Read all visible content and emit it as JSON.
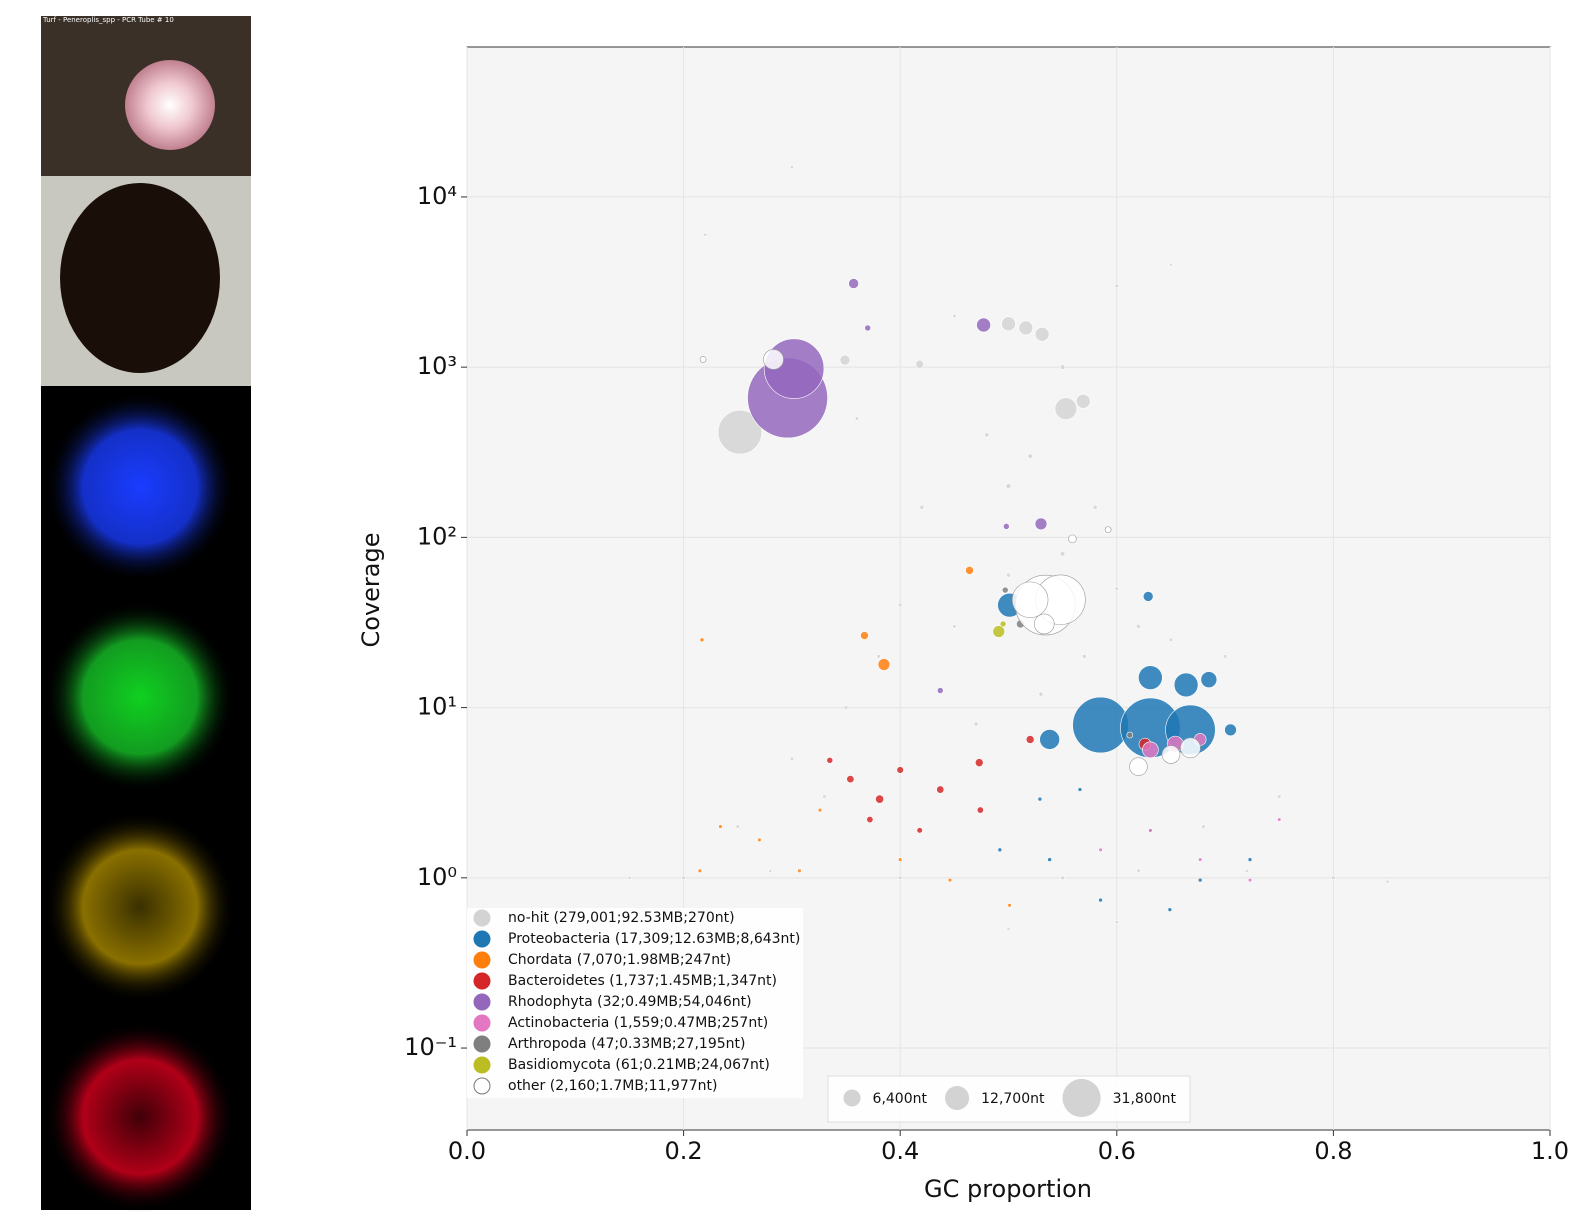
{
  "image_panel": {
    "caption": "Turf - Peneroplis_spp - PCR Tube # 10"
  },
  "chart_data": {
    "type": "scatter",
    "xlabel": "GC proportion",
    "ylabel": "Coverage",
    "xlim": [
      0,
      1
    ],
    "xticks": [
      {
        "value": 0,
        "label": "0.0"
      },
      0.2,
      0.4,
      0.6,
      0.8,
      {
        "value": 1,
        "label": "1.0"
      }
    ],
    "ylim": [
      0.033,
      76000
    ],
    "yscale": "log",
    "yticks": [
      {
        "value": 0.1,
        "label": "10⁻¹"
      },
      {
        "value": 1,
        "label": "10⁰"
      },
      {
        "value": 10,
        "label": "10¹"
      },
      {
        "value": 100,
        "label": "10²"
      },
      {
        "value": 1000,
        "label": "10³"
      },
      {
        "value": 10000,
        "label": "10⁴"
      }
    ],
    "grid": true,
    "legend": "lower left",
    "size_legend": [
      {
        "value": 6400,
        "label": "6,400nt"
      },
      {
        "value": 12700,
        "label": "12,700nt"
      },
      {
        "value": 31800,
        "label": "31,800nt"
      }
    ],
    "series": [
      {
        "name": "no-hit (279,001;92.53MB;270nt)",
        "color": "#d3d3d3",
        "x": [
          0.252,
          0.553,
          0.5,
          0.531,
          0.516,
          0.569,
          0.418,
          0.349,
          0.45,
          0.5,
          0.55,
          0.6,
          0.65,
          0.4,
          0.35,
          0.3,
          0.7,
          0.75,
          0.25,
          0.2,
          0.8,
          0.85,
          0.15,
          0.5,
          0.52,
          0.48,
          0.55,
          0.45,
          0.6,
          0.42,
          0.58,
          0.62,
          0.66,
          0.38,
          0.33,
          0.68,
          0.5,
          0.6,
          0.72,
          0.28,
          0.4,
          0.55,
          0.62,
          0.53,
          0.47,
          0.57,
          0.3,
          0.22,
          0.65,
          0.36
        ],
        "values": [
          415,
          570,
          1800,
          1560,
          1700,
          630,
          1040,
          1100,
          30,
          60,
          80,
          50,
          25,
          40,
          10,
          5,
          20,
          3,
          2,
          1.0,
          1.0,
          0.95,
          1.0,
          200,
          300,
          400,
          1000,
          2000,
          3000,
          150,
          150,
          30,
          12,
          20,
          3,
          2,
          0.5,
          0.55,
          1.1,
          1.1,
          1.0,
          1.0,
          1.1,
          12,
          8,
          20,
          15000,
          6000,
          4000,
          500
        ],
        "sizes": [
          42000,
          10500,
          4300,
          4300,
          4300,
          4300,
          1400,
          2200,
          300,
          400,
          500,
          300,
          300,
          300,
          300,
          300,
          300,
          300,
          300,
          300,
          300,
          200,
          200,
          600,
          500,
          400,
          500,
          300,
          300,
          400,
          400,
          400,
          300,
          300,
          300,
          300,
          200,
          200,
          200,
          200,
          300,
          300,
          300,
          400,
          400,
          400,
          200,
          200,
          200,
          300
        ]
      },
      {
        "name": "Proteobacteria (17,309;12.63MB;8,643nt)",
        "color": "#1f77b4",
        "x": [
          0.585,
          0.631,
          0.668,
          0.631,
          0.664,
          0.685,
          0.501,
          0.629,
          0.538,
          0.705,
          0.538,
          0.585,
          0.631,
          0.677,
          0.566,
          0.492,
          0.723,
          0.649,
          0.529
        ],
        "values": [
          7.9,
          7.6,
          7.4,
          15,
          13.6,
          14.6,
          40,
          45,
          6.5,
          7.4,
          1.28,
          0.74,
          1.9,
          0.97,
          3.3,
          1.46,
          1.28,
          0.65,
          2.9
        ],
        "sizes": [
          68000,
          78000,
          54000,
          12500,
          12500,
          5600,
          12500,
          2200,
          8700,
          3100,
          350,
          350,
          350,
          350,
          350,
          350,
          350,
          350,
          350
        ]
      },
      {
        "name": "Chordata (7,070;1.98MB;247nt)",
        "color": "#ff7f0e",
        "x": [
          0.464,
          0.385,
          0.367,
          0.217,
          0.215,
          0.27,
          0.307,
          0.4,
          0.446,
          0.501,
          0.326,
          0.234
        ],
        "values": [
          64,
          17.9,
          26.5,
          25,
          1.1,
          1.67,
          1.1,
          1.28,
          0.97,
          0.69,
          2.5,
          2.0
        ],
        "sizes": [
          1400,
          3100,
          1400,
          350,
          300,
          300,
          300,
          300,
          300,
          300,
          300,
          300
        ]
      },
      {
        "name": "Bacteroidetes (1,737;1.45MB;1,347nt)",
        "color": "#d62728",
        "x": [
          0.354,
          0.381,
          0.4,
          0.437,
          0.474,
          0.335,
          0.418,
          0.372,
          0.626,
          0.473,
          0.52
        ],
        "values": [
          3.8,
          2.9,
          4.3,
          3.3,
          2.5,
          4.9,
          1.9,
          2.2,
          6.1,
          4.75,
          6.5
        ],
        "sizes": [
          1200,
          1500,
          1000,
          1200,
          900,
          800,
          700,
          900,
          3100,
          1400,
          1400
        ]
      },
      {
        "name": "Rhodophyta (32;0.49MB;54,046nt)",
        "color": "#9467bd",
        "x": [
          0.296,
          0.302,
          0.357,
          0.477,
          0.37,
          0.53,
          0.437,
          0.498
        ],
        "values": [
          660,
          980,
          3100,
          1770,
          1700,
          120,
          12.6,
          116
        ],
        "sizes": [
          140000,
          78000,
          2200,
          4300,
          800,
          3100,
          800,
          800
        ]
      },
      {
        "name": "Actinobacteria (1,559;0.47MB;257nt)",
        "color": "#e377c2",
        "x": [
          0.631,
          0.654,
          0.677,
          0.631,
          0.677,
          0.723,
          0.585,
          0.75
        ],
        "values": [
          5.65,
          6.1,
          6.5,
          1.9,
          1.28,
          0.97,
          1.46,
          2.2
        ],
        "sizes": [
          5600,
          5600,
          3100,
          300,
          300,
          300,
          300,
          300
        ]
      },
      {
        "name": "Arthropoda (47;0.33MB;27,195nt)",
        "color": "#7f7f7f",
        "x": [
          0.511,
          0.497,
          0.612
        ],
        "values": [
          31,
          49,
          6.9
        ],
        "sizes": [
          1400,
          800,
          800
        ]
      },
      {
        "name": "Basidiomycota (61;0.21MB;24,067nt)",
        "color": "#bcbd22",
        "x": [
          0.491,
          0.495
        ],
        "values": [
          28,
          31
        ],
        "sizes": [
          3100,
          800
        ]
      },
      {
        "name": "other (2,160;1.7MB;11,977nt)",
        "color": "#ffffff",
        "x": [
          0.534,
          0.548,
          0.52,
          0.533,
          0.283,
          0.218,
          0.62,
          0.65,
          0.668,
          0.592,
          0.559
        ],
        "values": [
          40,
          43,
          43,
          31,
          1110,
          1110,
          4.5,
          5.3,
          5.8,
          111,
          98
        ],
        "sizes": [
          78000,
          54000,
          28000,
          8700,
          8700,
          800,
          7000,
          7000,
          8700,
          800,
          1400
        ]
      }
    ]
  }
}
